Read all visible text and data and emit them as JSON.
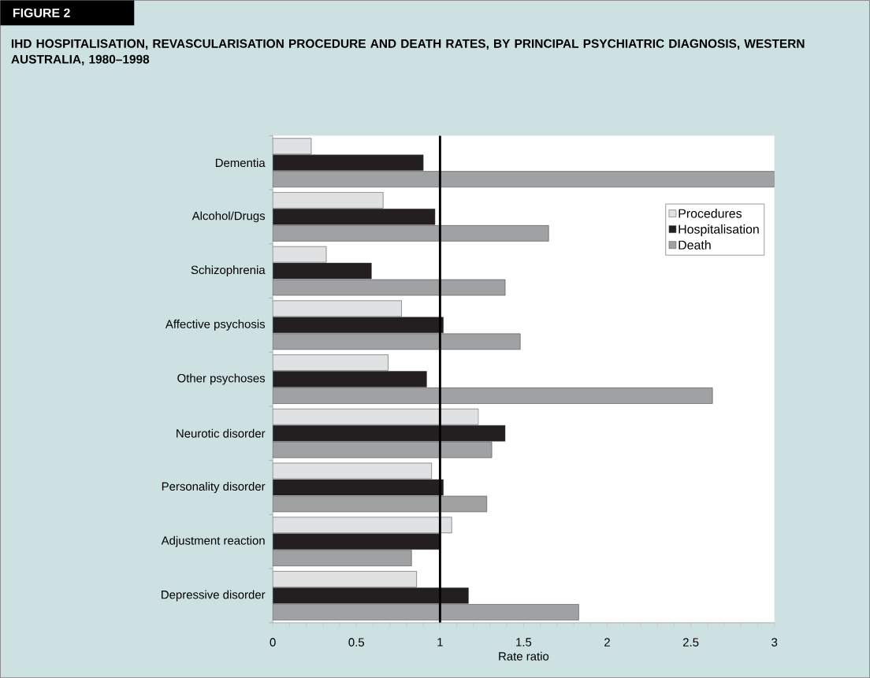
{
  "chart_data": {
    "type": "bar",
    "orientation": "horizontal",
    "title": "IHD HOSPITALISATION, REVASCULARISATION PROCEDURE AND DEATH RATES, BY PRINCIPAL PSYCHIATRIC DIAGNOSIS, WESTERN AUSTRALIA, 1980–1998",
    "annotations": [
      "FIGURE 2"
    ],
    "xlabel": "Rate ratio",
    "categories": [
      "Dementia",
      "Alcohol/Drugs",
      "Schizophrenia",
      "Affective psychosis",
      "Other psychoses",
      "Neurotic disorder",
      "Personality disorder",
      "Adjustment reaction",
      "Depressive disorder"
    ],
    "series": [
      {
        "name": "Procedures",
        "color": "#dfe1e3",
        "values": [
          0.23,
          0.66,
          0.32,
          0.77,
          0.69,
          1.23,
          0.95,
          1.07,
          0.86
        ]
      },
      {
        "name": "Hospitalisation",
        "color": "#231f20",
        "values": [
          0.9,
          0.97,
          0.59,
          1.02,
          0.92,
          1.39,
          1.02,
          1.0,
          1.17
        ]
      },
      {
        "name": "Death",
        "color": "#a0a1a3",
        "values": [
          3.0,
          1.65,
          1.39,
          1.48,
          2.63,
          1.31,
          1.28,
          0.83,
          1.83
        ]
      }
    ],
    "xlim": [
      0,
      3
    ],
    "xticks": [
      0,
      0.5,
      1,
      1.5,
      2,
      2.5,
      3
    ],
    "ref_lines": [
      {
        "axis": "x",
        "value": 1,
        "color": "#000000"
      }
    ],
    "legend": "top right",
    "grid": false
  }
}
